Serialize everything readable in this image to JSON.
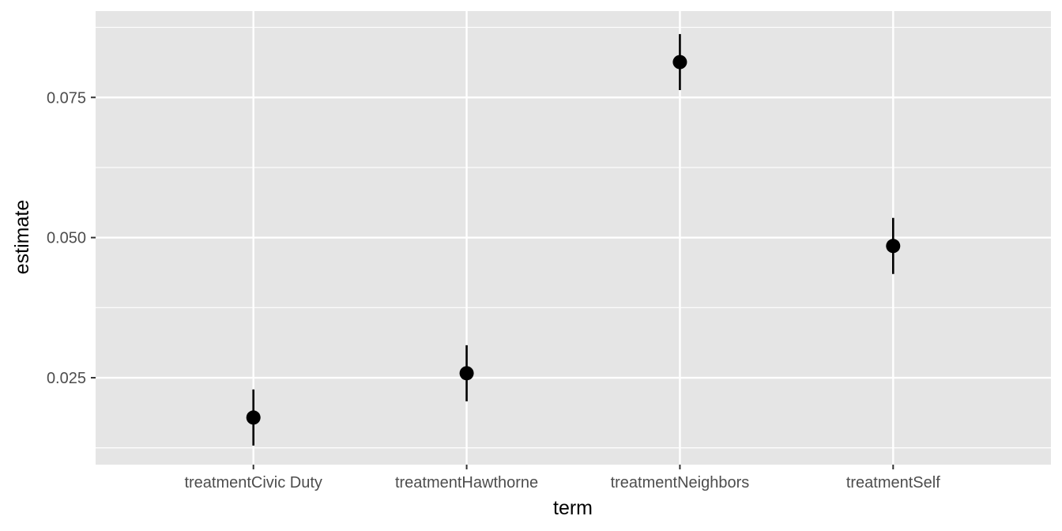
{
  "chart_data": {
    "type": "scatter",
    "subtype": "pointrange",
    "title": "",
    "xlabel": "term",
    "ylabel": "estimate",
    "categories": [
      "treatmentCivic Duty",
      "treatmentHawthorne",
      "treatmentNeighbors",
      "treatmentSelf"
    ],
    "series": [
      {
        "estimate": [
          0.0179,
          0.0258,
          0.0813,
          0.0485
        ],
        "conf_low": [
          0.0129,
          0.0208,
          0.0763,
          0.0435
        ],
        "conf_high": [
          0.0229,
          0.0308,
          0.0863,
          0.0535
        ]
      }
    ],
    "ylim": [
      0.0095,
      0.0904
    ],
    "y_ticks": [
      0.025,
      0.05,
      0.075
    ],
    "y_tick_labels": [
      "0.025",
      "0.050",
      "0.075"
    ],
    "y_minor_ticks": [
      0.0125,
      0.0375,
      0.0625,
      0.0875
    ],
    "grid": true,
    "legend": "none",
    "colors": {
      "panel_background": "#e5e5e5",
      "grid": "#ffffff",
      "point": "#000000",
      "tick_label": "#4d4d4d",
      "axis_title": "#000000"
    }
  }
}
